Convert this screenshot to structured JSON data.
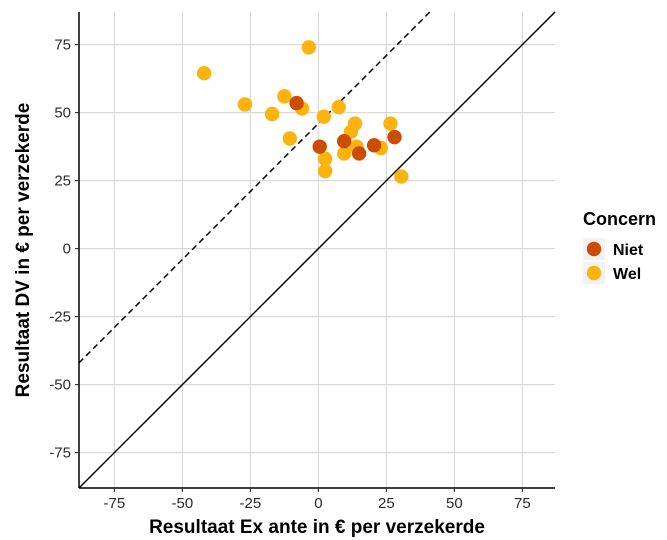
{
  "chart_data": {
    "type": "scatter",
    "title": "",
    "xlabel": "Resultaat Ex ante in  €  per verzekerde",
    "ylabel": "Resultaat DV in  €  per verzekerde",
    "xlim": [
      -88,
      87
    ],
    "ylim": [
      -88,
      87
    ],
    "x_ticks": [
      -75,
      -50,
      -25,
      0,
      25,
      50,
      75
    ],
    "y_ticks": [
      -75,
      -50,
      -25,
      0,
      25,
      50,
      75
    ],
    "x_tick_labels": [
      "-75",
      "-50",
      "-25",
      "0",
      "25",
      "50",
      "75"
    ],
    "y_tick_labels": [
      "-75",
      "-50",
      "-25",
      "0",
      "25",
      "50",
      "75"
    ],
    "grid": true,
    "legend": {
      "title": "Concern",
      "placement": "right",
      "entries": [
        {
          "label": "Niet",
          "color": "#cc4c02"
        },
        {
          "label": "Wel",
          "color": "#fbb30f"
        }
      ]
    },
    "reference_lines": [
      {
        "style": "solid",
        "slope": 1,
        "intercept": 0
      },
      {
        "style": "dashed",
        "slope": 1,
        "intercept": 46
      }
    ],
    "series": [
      {
        "name": "Wel",
        "color": "#fbb30f",
        "points": [
          {
            "x": -42,
            "y": 64.5
          },
          {
            "x": -3.5,
            "y": 74
          },
          {
            "x": -27,
            "y": 53
          },
          {
            "x": -17,
            "y": 49.5
          },
          {
            "x": -12.5,
            "y": 56
          },
          {
            "x": -6,
            "y": 51.5
          },
          {
            "x": -10.5,
            "y": 40.5
          },
          {
            "x": 2,
            "y": 48.5
          },
          {
            "x": 7.5,
            "y": 52
          },
          {
            "x": 12,
            "y": 43
          },
          {
            "x": 13.5,
            "y": 46
          },
          {
            "x": 14,
            "y": 37.5
          },
          {
            "x": 9.5,
            "y": 35
          },
          {
            "x": 2.5,
            "y": 33
          },
          {
            "x": 2.5,
            "y": 28.5
          },
          {
            "x": 23,
            "y": 37
          },
          {
            "x": 26.5,
            "y": 46
          },
          {
            "x": 30.5,
            "y": 26.5
          }
        ]
      },
      {
        "name": "Niet",
        "color": "#cc4c02",
        "points": [
          {
            "x": -8,
            "y": 53.5
          },
          {
            "x": 0.5,
            "y": 37.5
          },
          {
            "x": 9.5,
            "y": 39.5
          },
          {
            "x": 15,
            "y": 35
          },
          {
            "x": 20.5,
            "y": 38
          },
          {
            "x": 28,
            "y": 41
          }
        ]
      }
    ]
  }
}
